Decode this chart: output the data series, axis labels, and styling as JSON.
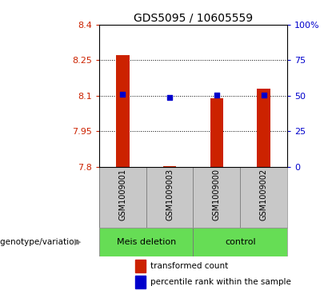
{
  "title": "GDS5095 / 10605559",
  "samples": [
    "GSM1009001",
    "GSM1009003",
    "GSM1009000",
    "GSM1009002"
  ],
  "group_spans": [
    [
      0,
      1,
      "Meis deletion"
    ],
    [
      2,
      3,
      "control"
    ]
  ],
  "bar_values": [
    8.27,
    7.802,
    8.09,
    8.13
  ],
  "bar_base": 7.8,
  "percentile_values": [
    8.105,
    8.093,
    8.103,
    8.103
  ],
  "ylim_left": [
    7.8,
    8.4
  ],
  "ylim_right": [
    0,
    100
  ],
  "yticks_left": [
    7.8,
    7.95,
    8.1,
    8.25,
    8.4
  ],
  "yticks_right": [
    0,
    25,
    50,
    75,
    100
  ],
  "ytick_labels_left": [
    "7.8",
    "7.95",
    "8.1",
    "8.25",
    "8.4"
  ],
  "ytick_labels_right": [
    "0",
    "25",
    "50",
    "75",
    "100%"
  ],
  "bar_color": "#cc2200",
  "dot_color": "#0000cc",
  "label_area_color": "#c8c8c8",
  "green_color": "#66dd55",
  "plot_bg": "#ffffff",
  "grid_style": "dotted"
}
